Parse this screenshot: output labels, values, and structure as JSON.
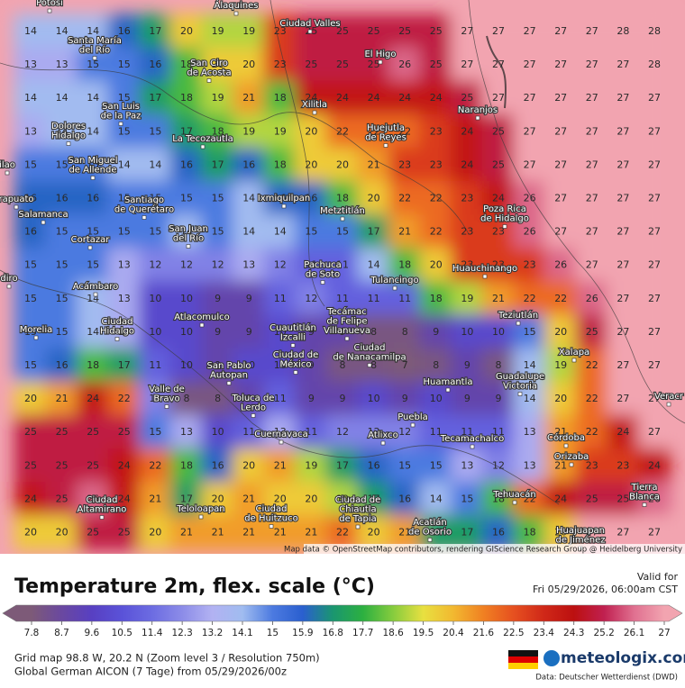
{
  "map": {
    "grid": [
      [
        14,
        14,
        14,
        16,
        17,
        20,
        19,
        19,
        23,
        25,
        25,
        25,
        25,
        25,
        27,
        27,
        27,
        27,
        27,
        28,
        28
      ],
      [
        13,
        13,
        15,
        15,
        16,
        18,
        20,
        20,
        23,
        25,
        25,
        25,
        26,
        25,
        27,
        27,
        27,
        27,
        27,
        27,
        28
      ],
      [
        14,
        14,
        14,
        15,
        17,
        18,
        19,
        21,
        18,
        24,
        24,
        24,
        24,
        24,
        25,
        27,
        27,
        27,
        27,
        27,
        27
      ],
      [
        13,
        14,
        14,
        15,
        15,
        17,
        18,
        19,
        19,
        20,
        22,
        22,
        22,
        23,
        24,
        25,
        27,
        27,
        27,
        27,
        27
      ],
      [
        15,
        15,
        15,
        14,
        14,
        16,
        17,
        16,
        18,
        20,
        20,
        21,
        23,
        23,
        24,
        25,
        27,
        27,
        27,
        27,
        27
      ],
      [
        16,
        16,
        16,
        15,
        15,
        15,
        15,
        14,
        16,
        16,
        18,
        20,
        22,
        22,
        23,
        24,
        26,
        27,
        27,
        27,
        27
      ],
      [
        16,
        15,
        15,
        15,
        15,
        14,
        15,
        14,
        14,
        15,
        15,
        17,
        21,
        22,
        23,
        23,
        26,
        27,
        27,
        27,
        27
      ],
      [
        15,
        15,
        15,
        13,
        12,
        12,
        12,
        13,
        12,
        11,
        11,
        14,
        18,
        20,
        23,
        23,
        23,
        26,
        27,
        27,
        27
      ],
      [
        15,
        15,
        14,
        13,
        10,
        10,
        9,
        9,
        11,
        12,
        11,
        11,
        11,
        18,
        19,
        21,
        22,
        22,
        26,
        27,
        27
      ],
      [
        15,
        15,
        14,
        13,
        10,
        10,
        9,
        9,
        10,
        9,
        9,
        8,
        8,
        9,
        10,
        10,
        15,
        20,
        25,
        27,
        27
      ],
      [
        15,
        16,
        18,
        17,
        11,
        10,
        9,
        10,
        10,
        9,
        8,
        8,
        7,
        8,
        9,
        8,
        14,
        19,
        22,
        27,
        27
      ],
      [
        20,
        21,
        24,
        22,
        12,
        8,
        8,
        9,
        11,
        9,
        9,
        10,
        9,
        10,
        9,
        9,
        14,
        20,
        22,
        27,
        27
      ],
      [
        25,
        25,
        25,
        25,
        15,
        13,
        10,
        11,
        13,
        11,
        12,
        12,
        12,
        11,
        11,
        11,
        13,
        21,
        22,
        24,
        27
      ],
      [
        25,
        25,
        25,
        24,
        22,
        18,
        16,
        20,
        21,
        19,
        17,
        16,
        15,
        15,
        13,
        12,
        13,
        21,
        23,
        23,
        24
      ],
      [
        24,
        25,
        26,
        24,
        21,
        17,
        20,
        21,
        20,
        20,
        19,
        17,
        16,
        14,
        15,
        18,
        22,
        24,
        25,
        25,
        26
      ],
      [
        20,
        20,
        25,
        25,
        20,
        21,
        21,
        21,
        21,
        21,
        22,
        20,
        21,
        17,
        17,
        16,
        18,
        20,
        27,
        27,
        27
      ]
    ],
    "cities": [
      {
        "lines": [
          "Potosí"
        ]
      },
      {
        "lines": [
          "Álaquines"
        ]
      },
      {
        "lines": [
          "Ciudad Valles"
        ]
      },
      {
        "lines": [
          "El Higo"
        ]
      },
      {
        "lines": [
          "Santa María",
          "del Río"
        ]
      },
      {
        "lines": [
          "San Ciro",
          "de Acosta"
        ]
      },
      {
        "lines": [
          "San Luis",
          "de la Paz"
        ]
      },
      {
        "lines": [
          "Xilitla"
        ]
      },
      {
        "lines": [
          "Naranjos"
        ]
      },
      {
        "lines": [
          "Huejutla",
          "de Reyes"
        ]
      },
      {
        "lines": [
          "Dolores",
          "Hidalgo"
        ]
      },
      {
        "lines": [
          "La Tecozautla"
        ]
      },
      {
        "lines": [
          "San Miguel",
          "de Allende"
        ]
      },
      {
        "lines": [
          "ilao"
        ]
      },
      {
        "lines": [
          "rapuato"
        ]
      },
      {
        "lines": [
          "Salamanca"
        ]
      },
      {
        "lines": [
          "Santiago",
          "de Querétaro"
        ]
      },
      {
        "lines": [
          "Metztitlán"
        ]
      },
      {
        "lines": [
          "Poza Rica",
          "de Hidalgo"
        ]
      },
      {
        "lines": [
          "Ixmiquilpan"
        ]
      },
      {
        "lines": [
          "San Juan",
          "del Río"
        ]
      },
      {
        "lines": [
          "Cortazar"
        ]
      },
      {
        "lines": [
          "Pachuca",
          "de Soto"
        ]
      },
      {
        "lines": [
          "Huauchinango"
        ]
      },
      {
        "lines": [
          "Tulancingo"
        ]
      },
      {
        "lines": [
          "Acámbaro"
        ]
      },
      {
        "lines": [
          "diro"
        ]
      },
      {
        "lines": [
          "Tecámac",
          "de Felipe",
          "Villanueva"
        ]
      },
      {
        "lines": [
          "Atlacomulco"
        ]
      },
      {
        "lines": [
          "Cuautitlán",
          "Izcalli"
        ]
      },
      {
        "lines": [
          "Teziutlán"
        ]
      },
      {
        "lines": [
          "Morelia"
        ]
      },
      {
        "lines": [
          "Ciudad",
          "Hidalgo"
        ]
      },
      {
        "lines": [
          "Ciudad",
          "de Nanacamilpa"
        ]
      },
      {
        "lines": [
          "Xalapa"
        ]
      },
      {
        "lines": [
          "Ciudad de",
          "México"
        ]
      },
      {
        "lines": [
          "San Pablo",
          "Autopan"
        ]
      },
      {
        "lines": [
          "Guadalupe",
          "Victoria"
        ]
      },
      {
        "lines": [
          "Huamantla"
        ]
      },
      {
        "lines": [
          "Valle de",
          "Bravo"
        ]
      },
      {
        "lines": [
          "Toluca de",
          "Lerdo"
        ]
      },
      {
        "lines": [
          "Veracr"
        ]
      },
      {
        "lines": [
          "Puebla"
        ]
      },
      {
        "lines": [
          "Cuernavaca"
        ]
      },
      {
        "lines": [
          "Atlixco"
        ]
      },
      {
        "lines": [
          "Tecamachalco"
        ]
      },
      {
        "lines": [
          "Córdoba"
        ]
      },
      {
        "lines": [
          "Orizaba"
        ]
      },
      {
        "lines": [
          "Tierra",
          "Blanca"
        ]
      },
      {
        "lines": [
          "Ciudad",
          "Altamirano"
        ]
      },
      {
        "lines": [
          "Teloloapan"
        ]
      },
      {
        "lines": [
          "Ciudad",
          "de Huitzuco"
        ]
      },
      {
        "lines": [
          "Ciudad de",
          "Chiautla",
          "de Tapia"
        ]
      },
      {
        "lines": [
          "Tehuacán"
        ]
      },
      {
        "lines": [
          "Acatlán",
          "de Osorio"
        ]
      },
      {
        "lines": [
          "Huajuapan",
          "de Jiménez"
        ]
      }
    ],
    "attribution": "Map data © OpenStreetMap contributors, rendering GIScience Research Group @ Heidelberg University"
  },
  "legend": {
    "title": "Temperature 2m, flex. scale (°C)",
    "ticks": [
      7.8,
      8.7,
      9.6,
      10.5,
      11.4,
      12.3,
      13.2,
      14.1,
      15,
      15.9,
      16.8,
      17.7,
      18.6,
      19.5,
      20.4,
      21.6,
      22.5,
      23.4,
      24.3,
      25.2,
      26.1,
      27
    ],
    "colors": [
      "#7d5a78",
      "#6a48a0",
      "#5840c2",
      "#5a52d8",
      "#6c6ce2",
      "#8c8ce8",
      "#b2b2f2",
      "#a0bcf0",
      "#4c7ae0",
      "#2a5fcf",
      "#1a9670",
      "#2cb040",
      "#86cc3e",
      "#e8e040",
      "#f2b830",
      "#f08022",
      "#e65020",
      "#d02818",
      "#bc1010",
      "#c02050",
      "#e07090",
      "#f2a4b0"
    ],
    "valid_label": "Valid for",
    "valid_time": "Fri 05/29/2026, 06:00am CST",
    "grid_info": "Grid map 98.8 W, 20.2 N (Zoom level 3 / Resolution 750m)",
    "model_info": "Global German AICON (7 Tage) from  05/29/2026/00z",
    "brand": "meteologix.com",
    "source": "Data: Deutscher Wetterdienst (DWD)"
  }
}
